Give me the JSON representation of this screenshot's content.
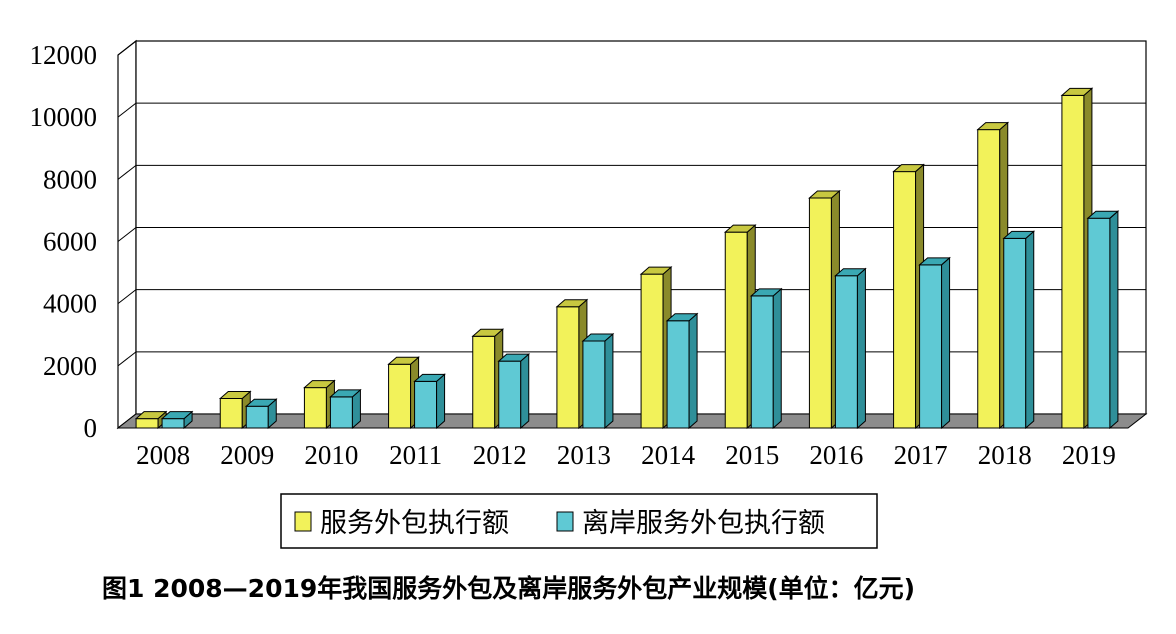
{
  "chart_data": {
    "type": "bar",
    "title": "图1 2008—2019年我国服务外包及离岸服务外包产业规模(单位：亿元)",
    "categories": [
      "2008",
      "2009",
      "2010",
      "2011",
      "2012",
      "2013",
      "2014",
      "2015",
      "2016",
      "2017",
      "2018",
      "2019"
    ],
    "series": [
      {
        "name": "服务外包执行额",
        "values": [
          300,
          950,
          1300,
          2050,
          2950,
          3900,
          4950,
          6300,
          7400,
          8250,
          9600,
          10700
        ]
      },
      {
        "name": "离岸服务外包执行额",
        "values": [
          300,
          700,
          1000,
          1500,
          2150,
          2800,
          3450,
          4250,
          4900,
          5250,
          6100,
          6750
        ]
      }
    ],
    "ylim": [
      0,
      12000
    ],
    "yticks": [
      "0",
      "2000",
      "4000",
      "6000",
      "8000",
      "10000",
      "12000"
    ],
    "grid": true,
    "legend_position": "bottom",
    "colors": {
      "series1_front": "#f2f25a",
      "series1_side": "#8a8a2a",
      "series1_top": "#c8c840",
      "series2_front": "#5fc9d4",
      "series2_side": "#2f8f99",
      "series2_top": "#3aa8b3",
      "floor": "#8c8c8c"
    }
  }
}
